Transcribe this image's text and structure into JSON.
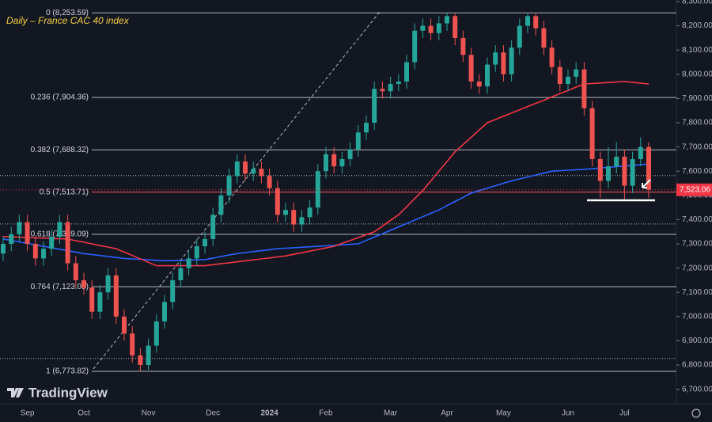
{
  "chart_data": {
    "type": "candlestick",
    "title": "Daily – France CAC 40 index",
    "logo": "TradingView",
    "categories": [
      null,
      null,
      null,
      "Sep",
      null,
      null,
      null,
      null,
      null,
      null,
      "Oct",
      null,
      null,
      null,
      null,
      null,
      null,
      null,
      "Nov",
      null,
      null,
      null,
      null,
      null,
      null,
      null,
      "Dec",
      null,
      null,
      null,
      null,
      null,
      null,
      "2024",
      null,
      null,
      null,
      null,
      null,
      null,
      "Feb",
      null,
      null,
      null,
      null,
      null,
      null,
      null,
      "Mar",
      null,
      null,
      null,
      null,
      null,
      null,
      "Apr",
      null,
      null,
      null,
      null,
      null,
      null,
      "May",
      null,
      null,
      null,
      null,
      null,
      null,
      null,
      "Jun",
      null,
      null,
      null,
      null,
      null,
      null,
      "Jul",
      null,
      null,
      null
    ],
    "open": [
      7260,
      7300,
      7340,
      7390,
      7300,
      7240,
      7280,
      7330,
      7390,
      7220,
      7150,
      7120,
      7020,
      7100,
      7170,
      7000,
      6930,
      6840,
      6800,
      6880,
      6980,
      7060,
      7150,
      7200,
      7240,
      7290,
      7320,
      7420,
      7500,
      7580,
      7640,
      7590,
      7610,
      7580,
      7530,
      7420,
      7440,
      7380,
      7410,
      7450,
      7600,
      7670,
      7620,
      7650,
      7690,
      7760,
      7800,
      7940,
      7930,
      7960,
      7970,
      8050,
      8180,
      8200,
      8170,
      8210,
      8240,
      8150,
      8080,
      7970,
      7950,
      8040,
      8090,
      8000,
      8110,
      8200,
      8240,
      8190,
      8110,
      8030,
      7960,
      7990,
      8020,
      7860,
      7650,
      7560,
      7620,
      7660,
      7540,
      7650,
      7700
    ],
    "high": [
      7330,
      7370,
      7420,
      7420,
      7330,
      7310,
      7360,
      7420,
      7420,
      7250,
      7180,
      7150,
      7130,
      7200,
      7200,
      7030,
      6960,
      6870,
      6910,
      7010,
      7090,
      7180,
      7230,
      7270,
      7320,
      7350,
      7450,
      7530,
      7610,
      7670,
      7670,
      7640,
      7640,
      7610,
      7560,
      7470,
      7470,
      7440,
      7480,
      7630,
      7700,
      7700,
      7680,
      7720,
      7790,
      7830,
      7970,
      7970,
      7990,
      8000,
      8080,
      8210,
      8230,
      8230,
      8240,
      8253.59,
      8250,
      8180,
      8110,
      8000,
      8070,
      8120,
      8120,
      8140,
      8230,
      8250,
      8250,
      8220,
      8140,
      8060,
      8020,
      8050,
      8050,
      7890,
      7680,
      7700,
      7720,
      7690,
      7680,
      7740,
      7720
    ],
    "low": [
      7230,
      7270,
      7310,
      7270,
      7210,
      7210,
      7250,
      7300,
      7190,
      7120,
      7090,
      6990,
      6990,
      7070,
      6970,
      6900,
      6810,
      6774,
      6780,
      6850,
      6950,
      7030,
      7120,
      7170,
      7210,
      7260,
      7290,
      7390,
      7470,
      7550,
      7560,
      7560,
      7550,
      7500,
      7390,
      7390,
      7350,
      7350,
      7380,
      7420,
      7570,
      7590,
      7590,
      7620,
      7660,
      7730,
      7770,
      7900,
      7900,
      7930,
      7940,
      8020,
      8150,
      8140,
      8140,
      8180,
      8120,
      8050,
      7940,
      7920,
      7920,
      8010,
      7970,
      7970,
      8080,
      8170,
      8160,
      8080,
      8000,
      7930,
      7930,
      7960,
      7830,
      7620,
      7490,
      7530,
      7590,
      7480,
      7510,
      7620,
      7490
    ],
    "close": [
      7300,
      7340,
      7390,
      7300,
      7240,
      7280,
      7330,
      7390,
      7220,
      7150,
      7120,
      7020,
      7100,
      7170,
      7000,
      6930,
      6840,
      6800,
      6880,
      6980,
      7060,
      7150,
      7200,
      7240,
      7290,
      7320,
      7420,
      7500,
      7580,
      7640,
      7590,
      7610,
      7580,
      7530,
      7420,
      7440,
      7380,
      7410,
      7450,
      7600,
      7670,
      7620,
      7650,
      7690,
      7760,
      7800,
      7940,
      7930,
      7960,
      7970,
      8050,
      8180,
      8200,
      8170,
      8210,
      8240,
      8150,
      8080,
      7970,
      7950,
      8040,
      8090,
      8000,
      8110,
      8200,
      8240,
      8190,
      8110,
      8030,
      7960,
      7990,
      8020,
      7860,
      7650,
      7560,
      7620,
      7660,
      7540,
      7650,
      7700,
      7523.06
    ],
    "up_color": "#26a69a",
    "down_color": "#ef5350",
    "lines": [
      {
        "color": "#2962ff",
        "values": [
          7320,
          7314,
          7308,
          7302,
          7296,
          7290,
          7284,
          7278,
          7272,
          7266,
          7260,
          7256,
          7252,
          7248,
          7244,
          7240,
          7238,
          7236,
          7234,
          7232,
          7230,
          7231,
          7232,
          7233,
          7234,
          7235,
          7241,
          7248,
          7254,
          7260,
          7264,
          7268,
          7272,
          7276,
          7280,
          7282,
          7284,
          7286,
          7288,
          7290,
          7292,
          7294,
          7296,
          7298,
          7300,
          7314,
          7328,
          7342,
          7356,
          7370,
          7384,
          7398,
          7412,
          7426,
          7440,
          7458,
          7475,
          7492,
          7510,
          7520,
          7530,
          7540,
          7550,
          7560,
          7568,
          7576,
          7584,
          7592,
          7600,
          7602,
          7604,
          7606,
          7608,
          7610,
          7613,
          7616,
          7619,
          7621,
          7624,
          7627,
          7630
        ]
      },
      {
        "color": "#f23645",
        "values": [
          7330,
          7329,
          7328,
          7326,
          7325,
          7324,
          7322,
          7321,
          7320,
          7313,
          7307,
          7300,
          7293,
          7287,
          7280,
          7266,
          7252,
          7238,
          7224,
          7210,
          7210,
          7210,
          7210,
          7210,
          7210,
          7210,
          7214,
          7218,
          7222,
          7226,
          7230,
          7234,
          7238,
          7242,
          7246,
          7250,
          7257,
          7263,
          7270,
          7277,
          7283,
          7290,
          7302,
          7314,
          7326,
          7338,
          7350,
          7373,
          7397,
          7420,
          7453,
          7487,
          7520,
          7560,
          7600,
          7640,
          7680,
          7710,
          7740,
          7770,
          7800,
          7813,
          7827,
          7840,
          7853,
          7867,
          7880,
          7893,
          7907,
          7920,
          7933,
          7947,
          7960,
          7962,
          7964,
          7966,
          7968,
          7970,
          7967,
          7963,
          7960
        ]
      }
    ],
    "fib_levels": [
      {
        "value": 8253.59,
        "label": "0 (8,253.59)",
        "color": "#b2b5be"
      },
      {
        "value": 7904.36,
        "label": "0.236 (7,904.36)",
        "color": "#b2b5be"
      },
      {
        "value": 7688.32,
        "label": "0.382 (7,688.32)",
        "color": "#b2b5be"
      },
      {
        "value": 7513.71,
        "label": "0.5 (7,513.71)",
        "color": "#f7525f"
      },
      {
        "value": 7339.09,
        "label": "0.618 (7,339.09)",
        "color": "#b2b5be"
      },
      {
        "value": 7123.05,
        "label": "0.764 (7,123.05)",
        "color": "#b2b5be"
      },
      {
        "value": 6773.82,
        "label": "1 (6,773.82)",
        "color": "#b2b5be"
      }
    ],
    "dotted_levels": [
      7582,
      7382,
      6827
    ],
    "support_level": 7480,
    "last_price": {
      "value": 7523.06,
      "label": "7,523.06"
    },
    "ylim": [
      6640,
      8300
    ],
    "yticks": [
      {
        "value": 6700,
        "label": "6,700.00"
      },
      {
        "value": 6800,
        "label": "6,800.00"
      },
      {
        "value": 6900,
        "label": "6,900.00"
      },
      {
        "value": 7000,
        "label": "7,000.00"
      },
      {
        "value": 7100,
        "label": "7,100.00"
      },
      {
        "value": 7200,
        "label": "7,200.00"
      },
      {
        "value": 7300,
        "label": "7,300.00"
      },
      {
        "value": 7400,
        "label": "7,400.00"
      },
      {
        "value": 7500,
        "label": "7,500.00"
      },
      {
        "value": 7600,
        "label": "7,600.00"
      },
      {
        "value": 7700,
        "label": "7,700.00"
      },
      {
        "value": 7800,
        "label": "7,800.00"
      },
      {
        "value": 7900,
        "label": "7,900.00"
      },
      {
        "value": 8000,
        "label": "8,000.00"
      },
      {
        "value": 8100,
        "label": "8,100.00"
      },
      {
        "value": 8200,
        "label": "8,200.00"
      },
      {
        "value": 8300,
        "label": "8,300.00"
      }
    ]
  }
}
